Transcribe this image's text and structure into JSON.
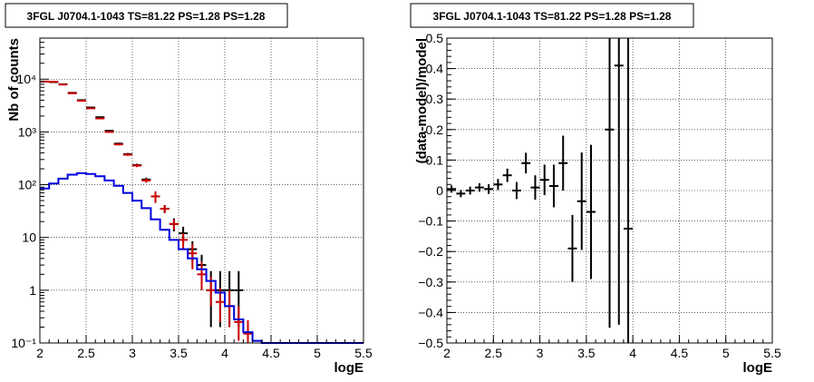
{
  "colors": {
    "background": "#ffffff",
    "axis": "#000000",
    "grid": "#000000",
    "data_points": "#000000",
    "model_total": "#cc0000",
    "model_source": "#0000dd"
  },
  "chart_data": [
    {
      "type": "line",
      "title": "3FGL J0704.1-1043 TS=81.22 PS=1.28 PS=1.28",
      "xlabel": "logE",
      "ylabel": "Nb of counts",
      "xlim": [
        2,
        5.5
      ],
      "ylim": [
        0.1,
        60000
      ],
      "yscale": "log",
      "grid": true,
      "x_ticks": [
        2,
        2.5,
        3,
        3.5,
        4,
        4.5,
        5,
        5.5
      ],
      "x_tick_labels": [
        "2",
        "2.5",
        "3",
        "3.5",
        "4",
        "4.5",
        "5",
        "5.5"
      ],
      "y_ticks": [
        0.1,
        1,
        10,
        100,
        1000,
        10000
      ],
      "y_tick_labels": [
        "10⁻¹",
        "1",
        "10",
        "10²",
        "10³",
        "10⁴"
      ],
      "series": [
        {
          "type": "errorbar",
          "x": [
            2.05,
            2.15,
            2.25,
            2.35,
            2.45,
            2.55,
            2.65,
            2.75,
            2.85,
            2.95,
            3.05,
            3.15,
            3.25,
            3.35,
            3.45,
            3.55,
            3.65,
            3.75,
            3.85,
            3.95,
            4.05,
            4.15
          ],
          "y": [
            9000,
            8800,
            8000,
            5500,
            4000,
            2900,
            1900,
            1050,
            600,
            380,
            235,
            125,
            60,
            35,
            18,
            12,
            6,
            3,
            1,
            1,
            1,
            1
          ],
          "yerr_low": [
            95,
            94,
            89,
            74,
            63,
            54,
            44,
            32,
            24,
            19,
            15,
            11,
            10,
            6,
            5,
            4,
            2.5,
            1.7,
            0.8,
            0.8,
            0.8,
            0.8
          ],
          "yerr_high": [
            95,
            94,
            89,
            74,
            63,
            54,
            44,
            32,
            24,
            19,
            15,
            11,
            10,
            6,
            5,
            4,
            2.5,
            1.7,
            1.3,
            1.3,
            1.3,
            1.3
          ]
        },
        {
          "type": "errorbar",
          "x": [
            2.05,
            2.15,
            2.25,
            2.35,
            2.45,
            2.55,
            2.65,
            2.75,
            2.85,
            2.95,
            3.05,
            3.15,
            3.25,
            3.35,
            3.45,
            3.55,
            3.65,
            3.75,
            3.85,
            3.95,
            4.05,
            4.15,
            4.25
          ],
          "y": [
            9000,
            8900,
            7900,
            5400,
            3900,
            2800,
            1800,
            1000,
            580,
            370,
            230,
            120,
            60,
            35,
            18,
            9,
            5,
            2,
            1,
            0.6,
            0.5,
            0.25,
            0.15
          ],
          "yerr_low": [
            95,
            94,
            89,
            73,
            62,
            53,
            42,
            32,
            24,
            19,
            15,
            11,
            15,
            6,
            4,
            3,
            2.5,
            1,
            0.5,
            0.35,
            0.3,
            0.14,
            0.06
          ],
          "yerr_high": [
            95,
            94,
            89,
            73,
            62,
            53,
            42,
            32,
            24,
            19,
            15,
            11,
            15,
            6,
            4,
            3,
            2.5,
            1.5,
            0.8,
            0.5,
            0.5,
            0.25,
            0.12
          ]
        },
        {
          "type": "step",
          "x_edges": [
            2.0,
            2.1,
            2.2,
            2.3,
            2.4,
            2.5,
            2.6,
            2.7,
            2.8,
            2.9,
            3.0,
            3.1,
            3.2,
            3.3,
            3.4,
            3.5,
            3.6,
            3.7,
            3.8,
            3.9,
            4.0,
            4.1,
            4.2,
            4.3,
            4.4,
            4.5,
            4.6,
            4.7,
            4.8,
            4.9,
            5.0,
            5.1,
            5.2,
            5.3,
            5.4,
            5.5
          ],
          "values": [
            85,
            105,
            130,
            155,
            165,
            160,
            145,
            120,
            95,
            70,
            50,
            36,
            22,
            14,
            9,
            6,
            4,
            2.5,
            1.5,
            0.9,
            0.5,
            0.28,
            0.16,
            0.11,
            0.1,
            0.1,
            0.1,
            0.1,
            0.1,
            0.1,
            0.1,
            0.1,
            0.1,
            0.1,
            0.1
          ]
        }
      ]
    },
    {
      "type": "scatter",
      "title": "3FGL J0704.1-1043 TS=81.22 PS=1.28 PS=1.28",
      "xlabel": "logE",
      "ylabel": "(data-model)/model",
      "xlim": [
        2,
        5.5
      ],
      "ylim": [
        -0.5,
        0.5
      ],
      "grid": true,
      "x_ticks": [
        2,
        2.5,
        3,
        3.5,
        4,
        4.5,
        5,
        5.5
      ],
      "x_tick_labels": [
        "2",
        "2.5",
        "3",
        "3.5",
        "4",
        "4.5",
        "5",
        "5.5"
      ],
      "y_ticks": [
        -0.5,
        -0.4,
        -0.3,
        -0.2,
        -0.1,
        0,
        0.1,
        0.2,
        0.3,
        0.4,
        0.5
      ],
      "y_tick_labels": [
        "−0.5",
        "−0.4",
        "−0.3",
        "−0.2",
        "−0.1",
        "0",
        "0.1",
        "0.2",
        "0.3",
        "0.4",
        "0.5"
      ],
      "series": [
        {
          "type": "errorbar",
          "x": [
            2.05,
            2.15,
            2.25,
            2.35,
            2.45,
            2.55,
            2.65,
            2.75,
            2.85,
            2.95,
            3.05,
            3.15,
            3.25,
            3.35,
            3.45,
            3.55,
            3.75,
            3.85,
            3.95
          ],
          "y": [
            0.005,
            -0.01,
            0.0,
            0.01,
            0.005,
            0.02,
            0.05,
            0.0,
            0.09,
            0.01,
            0.035,
            0.015,
            0.09,
            -0.19,
            -0.035,
            -0.07,
            0.2,
            0.41,
            -0.125
          ],
          "yerr": [
            0.012,
            0.012,
            0.013,
            0.014,
            0.016,
            0.018,
            0.022,
            0.028,
            0.034,
            0.04,
            0.05,
            0.07,
            0.09,
            0.11,
            0.16,
            0.22,
            0.65,
            0.85,
            0.9
          ]
        }
      ]
    }
  ]
}
